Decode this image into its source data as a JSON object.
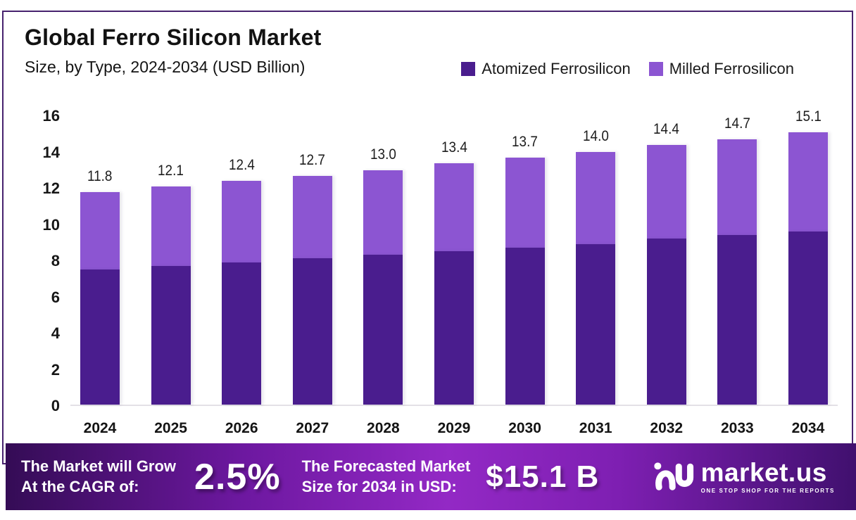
{
  "header": {
    "title": "Global Ferro Silicon Market",
    "subtitle": "Size, by Type, 2024-2034 (USD Billion)"
  },
  "legend": [
    {
      "label": "Atomized Ferrosilicon",
      "color": "#4a1d8e"
    },
    {
      "label": "Milled Ferrosilicon",
      "color": "#8c55d2"
    }
  ],
  "chart_data": {
    "type": "bar",
    "stacked": true,
    "title": "Global Ferro Silicon Market",
    "subtitle": "Size, by Type, 2024-2034 (USD Billion)",
    "categories": [
      "2024",
      "2025",
      "2026",
      "2027",
      "2028",
      "2029",
      "2030",
      "2031",
      "2032",
      "2033",
      "2034"
    ],
    "series": [
      {
        "name": "Atomized Ferrosilicon",
        "color": "#4a1d8e",
        "values": [
          7.5,
          7.7,
          7.9,
          8.1,
          8.3,
          8.5,
          8.7,
          8.9,
          9.2,
          9.4,
          9.6
        ]
      },
      {
        "name": "Milled Ferrosilicon",
        "color": "#8c55d2",
        "values": [
          4.3,
          4.4,
          4.5,
          4.6,
          4.7,
          4.9,
          5.0,
          5.1,
          5.2,
          5.3,
          5.5
        ]
      }
    ],
    "totals": [
      11.8,
      12.1,
      12.4,
      12.7,
      13.0,
      13.4,
      13.7,
      14.0,
      14.4,
      14.7,
      15.1
    ],
    "total_labels": [
      "11.8",
      "12.1",
      "12.4",
      "12.7",
      "13.0",
      "13.4",
      "13.7",
      "14.0",
      "14.4",
      "14.7",
      "15.1"
    ],
    "ylim": [
      0,
      16
    ],
    "yticks": [
      0,
      2,
      4,
      6,
      8,
      10,
      12,
      14,
      16
    ],
    "grid": false,
    "legend_position": "top-right",
    "unit": "USD Billion"
  },
  "banner": {
    "cagr_label_line1": "The Market will Grow",
    "cagr_label_line2": "At the CAGR of:",
    "cagr_value": "2.5%",
    "forecast_label_line1": "The Forecasted Market",
    "forecast_label_line2": "Size for 2034 in USD:",
    "forecast_value": "$15.1 B",
    "logo_text": "market.us",
    "logo_tagline": "ONE STOP SHOP FOR THE REPORTS"
  },
  "colors": {
    "frame_border": "#47226e",
    "atomized": "#4a1d8e",
    "milled": "#8c55d2",
    "axis_line": "#e3e0e6",
    "banner_gradient_dark": "#340c55",
    "banner_gradient_bright": "#9329c5"
  }
}
